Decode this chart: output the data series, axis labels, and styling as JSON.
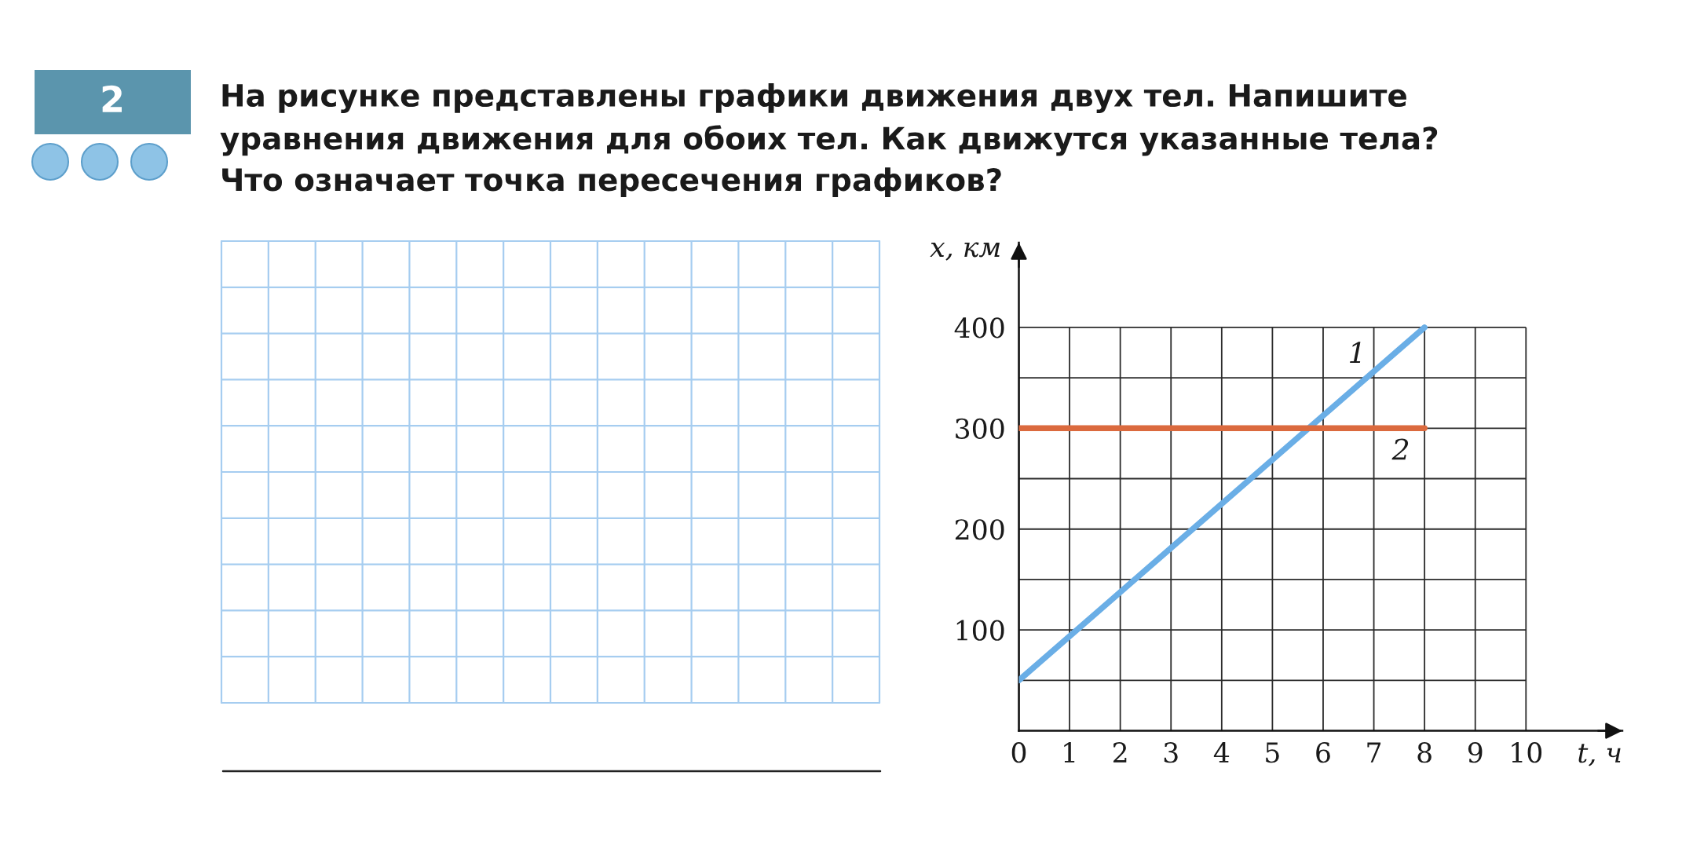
{
  "chart_data": {
    "type": "line",
    "title": "На рисунке представлены графики движения двух тел. Напишите\nуравнения движения для обоих тел. Как движутся указанные тела?\nЧто означает точка пересечения графиков?",
    "xlabel": "t, ч",
    "ylabel": "x, км",
    "annotations": [
      "2"
    ],
    "x": [
      0,
      8
    ],
    "series": [
      {
        "name": "1",
        "color": "#6aaee6",
        "values": [
          50,
          400
        ]
      },
      {
        "name": "2",
        "color": "#db6a3e",
        "values": [
          300,
          300
        ]
      }
    ],
    "xlim": [
      0,
      11.9
    ],
    "ylim": [
      0,
      484
    ],
    "xticks": [
      0,
      1,
      2,
      3,
      4,
      5,
      6,
      7,
      8,
      9,
      10
    ],
    "yticks": [
      {
        "value": 50,
        "label": null
      },
      100,
      {
        "value": 150,
        "label": null
      },
      200,
      {
        "value": 250,
        "label": null
      },
      300,
      {
        "value": 350,
        "label": null
      },
      400
    ],
    "grid": true,
    "line_style": "solid"
  }
}
